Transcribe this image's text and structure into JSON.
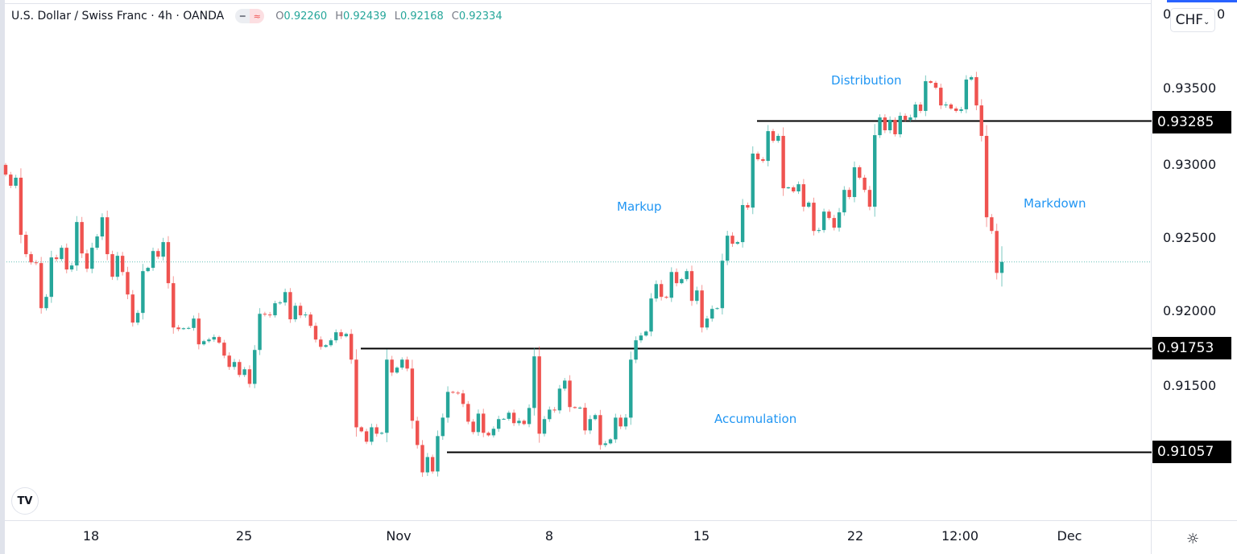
{
  "header": {
    "title": "U.S. Dollar / Swiss Franc · 4h · OANDA",
    "ohlc": {
      "o_label": "O",
      "o": "0.92260",
      "h_label": "H",
      "h": "0.92439",
      "l_label": "L",
      "l": "0.92168",
      "c_label": "C",
      "c": "0.92334"
    }
  },
  "currency_button": "CHF",
  "top_partial_label": "0",
  "settings_icon": "gear-icon",
  "logo": "TV",
  "colors": {
    "up": "#26a69a",
    "down": "#ef5350",
    "annotation": "#2196f3",
    "level_line": "#000000",
    "last_price_line": "#26a69a"
  },
  "chart_data": {
    "type": "candlestick",
    "title": "U.S. Dollar / Swiss Franc · 4h · OANDA",
    "interval": "4h",
    "ylim": [
      0.9085,
      0.9405
    ],
    "grid": false,
    "y_ticks": [
      "0.93500",
      "0.93000",
      "0.92500",
      "0.92000",
      "0.91500"
    ],
    "x_ticks": [
      "18",
      "25",
      "Nov",
      "8",
      "15",
      "22",
      "12:00",
      "Dec"
    ],
    "first_open": 0.92986,
    "closes": [
      0.92921,
      0.92846,
      0.929,
      0.92516,
      0.92386,
      0.92331,
      0.92326,
      0.92023,
      0.92099,
      0.92364,
      0.92353,
      0.92429,
      0.92283,
      0.9231,
      0.92602,
      0.92391,
      0.92288,
      0.92429,
      0.92505,
      0.92634,
      0.92386,
      0.92234,
      0.92375,
      0.92266,
      0.92115,
      0.91926,
      0.91991,
      0.92272,
      0.92294,
      0.92407,
      0.92369,
      0.92467,
      0.92191,
      0.91893,
      0.91882,
      0.91888,
      0.9189,
      0.91953,
      0.9178,
      0.91801,
      0.91812,
      0.91829,
      0.91791,
      0.91704,
      0.91628,
      0.91661,
      0.91574,
      0.91612,
      0.91514,
      0.91742,
      0.91985,
      0.9198,
      0.91975,
      0.92056,
      0.92061,
      0.92131,
      0.91948,
      0.92039,
      0.91975,
      0.9198,
      0.91904,
      0.91812,
      0.91763,
      0.91774,
      0.91807,
      0.91861,
      0.91834,
      0.9185,
      0.91677,
      0.91222,
      0.91195,
      0.91125,
      0.91222,
      0.91179,
      0.91185,
      0.91677,
      0.9159,
      0.91623,
      0.91677,
      0.91617,
      0.91266,
      0.91103,
      0.90919,
      0.91022,
      0.90925,
      0.91163,
      0.91287,
      0.9146,
      0.91455,
      0.9145,
      0.91379,
      0.9126,
      0.9119,
      0.91314,
      0.91185,
      0.91168,
      0.91212,
      0.91277,
      0.91279,
      0.9132,
      0.9125,
      0.91266,
      0.91244,
      0.91352,
      0.91699,
      0.91179,
      0.91277,
      0.91341,
      0.91336,
      0.91482,
      0.91536,
      0.91358,
      0.91352,
      0.91354,
      0.91201,
      0.91277,
      0.91304,
      0.91103,
      0.91114,
      0.91141,
      0.91287,
      0.91228,
      0.91287,
      0.91677,
      0.91807,
      0.91839,
      0.91866,
      0.92088,
      0.92185,
      0.92099,
      0.92093,
      0.92266,
      0.92191,
      0.92218,
      0.92272,
      0.92072,
      0.92142,
      0.91893,
      0.91953,
      0.92018,
      0.92023,
      0.92342,
      0.9251,
      0.92456,
      0.92467,
      0.92716,
      0.92699,
      0.93062,
      0.93024,
      0.93013,
      0.93213,
      0.93148,
      0.93181,
      0.92829,
      0.92835,
      0.92808,
      0.92856,
      0.92705,
      0.92732,
      0.92542,
      0.92548,
      0.92672,
      0.92629,
      0.92564,
      0.92667,
      0.92818,
      0.9277,
      0.9297,
      0.929,
      0.92818,
      0.92705,
      0.93186,
      0.93305,
      0.93219,
      0.93289,
      0.93192,
      0.93316,
      0.93289,
      0.93305,
      0.93392,
      0.93349,
      0.93549,
      0.93538,
      0.93505,
      0.93386,
      0.93392,
      0.93365,
      0.93349,
      0.9336,
      0.9356,
      0.93576,
      0.93386,
      0.93181,
      0.92634,
      0.92542,
      0.9226,
      0.92334
    ],
    "last_candle": {
      "open": 0.9226,
      "high": 0.92439,
      "low": 0.92168,
      "close": 0.92334
    },
    "last_price": 0.92334,
    "levels": [
      {
        "price": 0.93285,
        "label": "0.93285"
      },
      {
        "price": 0.91753,
        "label": "0.91753"
      },
      {
        "price": 0.91057,
        "label": "0.91057"
      }
    ],
    "annotations": [
      "Distribution",
      "Markup",
      "Markdown",
      "Accumulation"
    ]
  }
}
